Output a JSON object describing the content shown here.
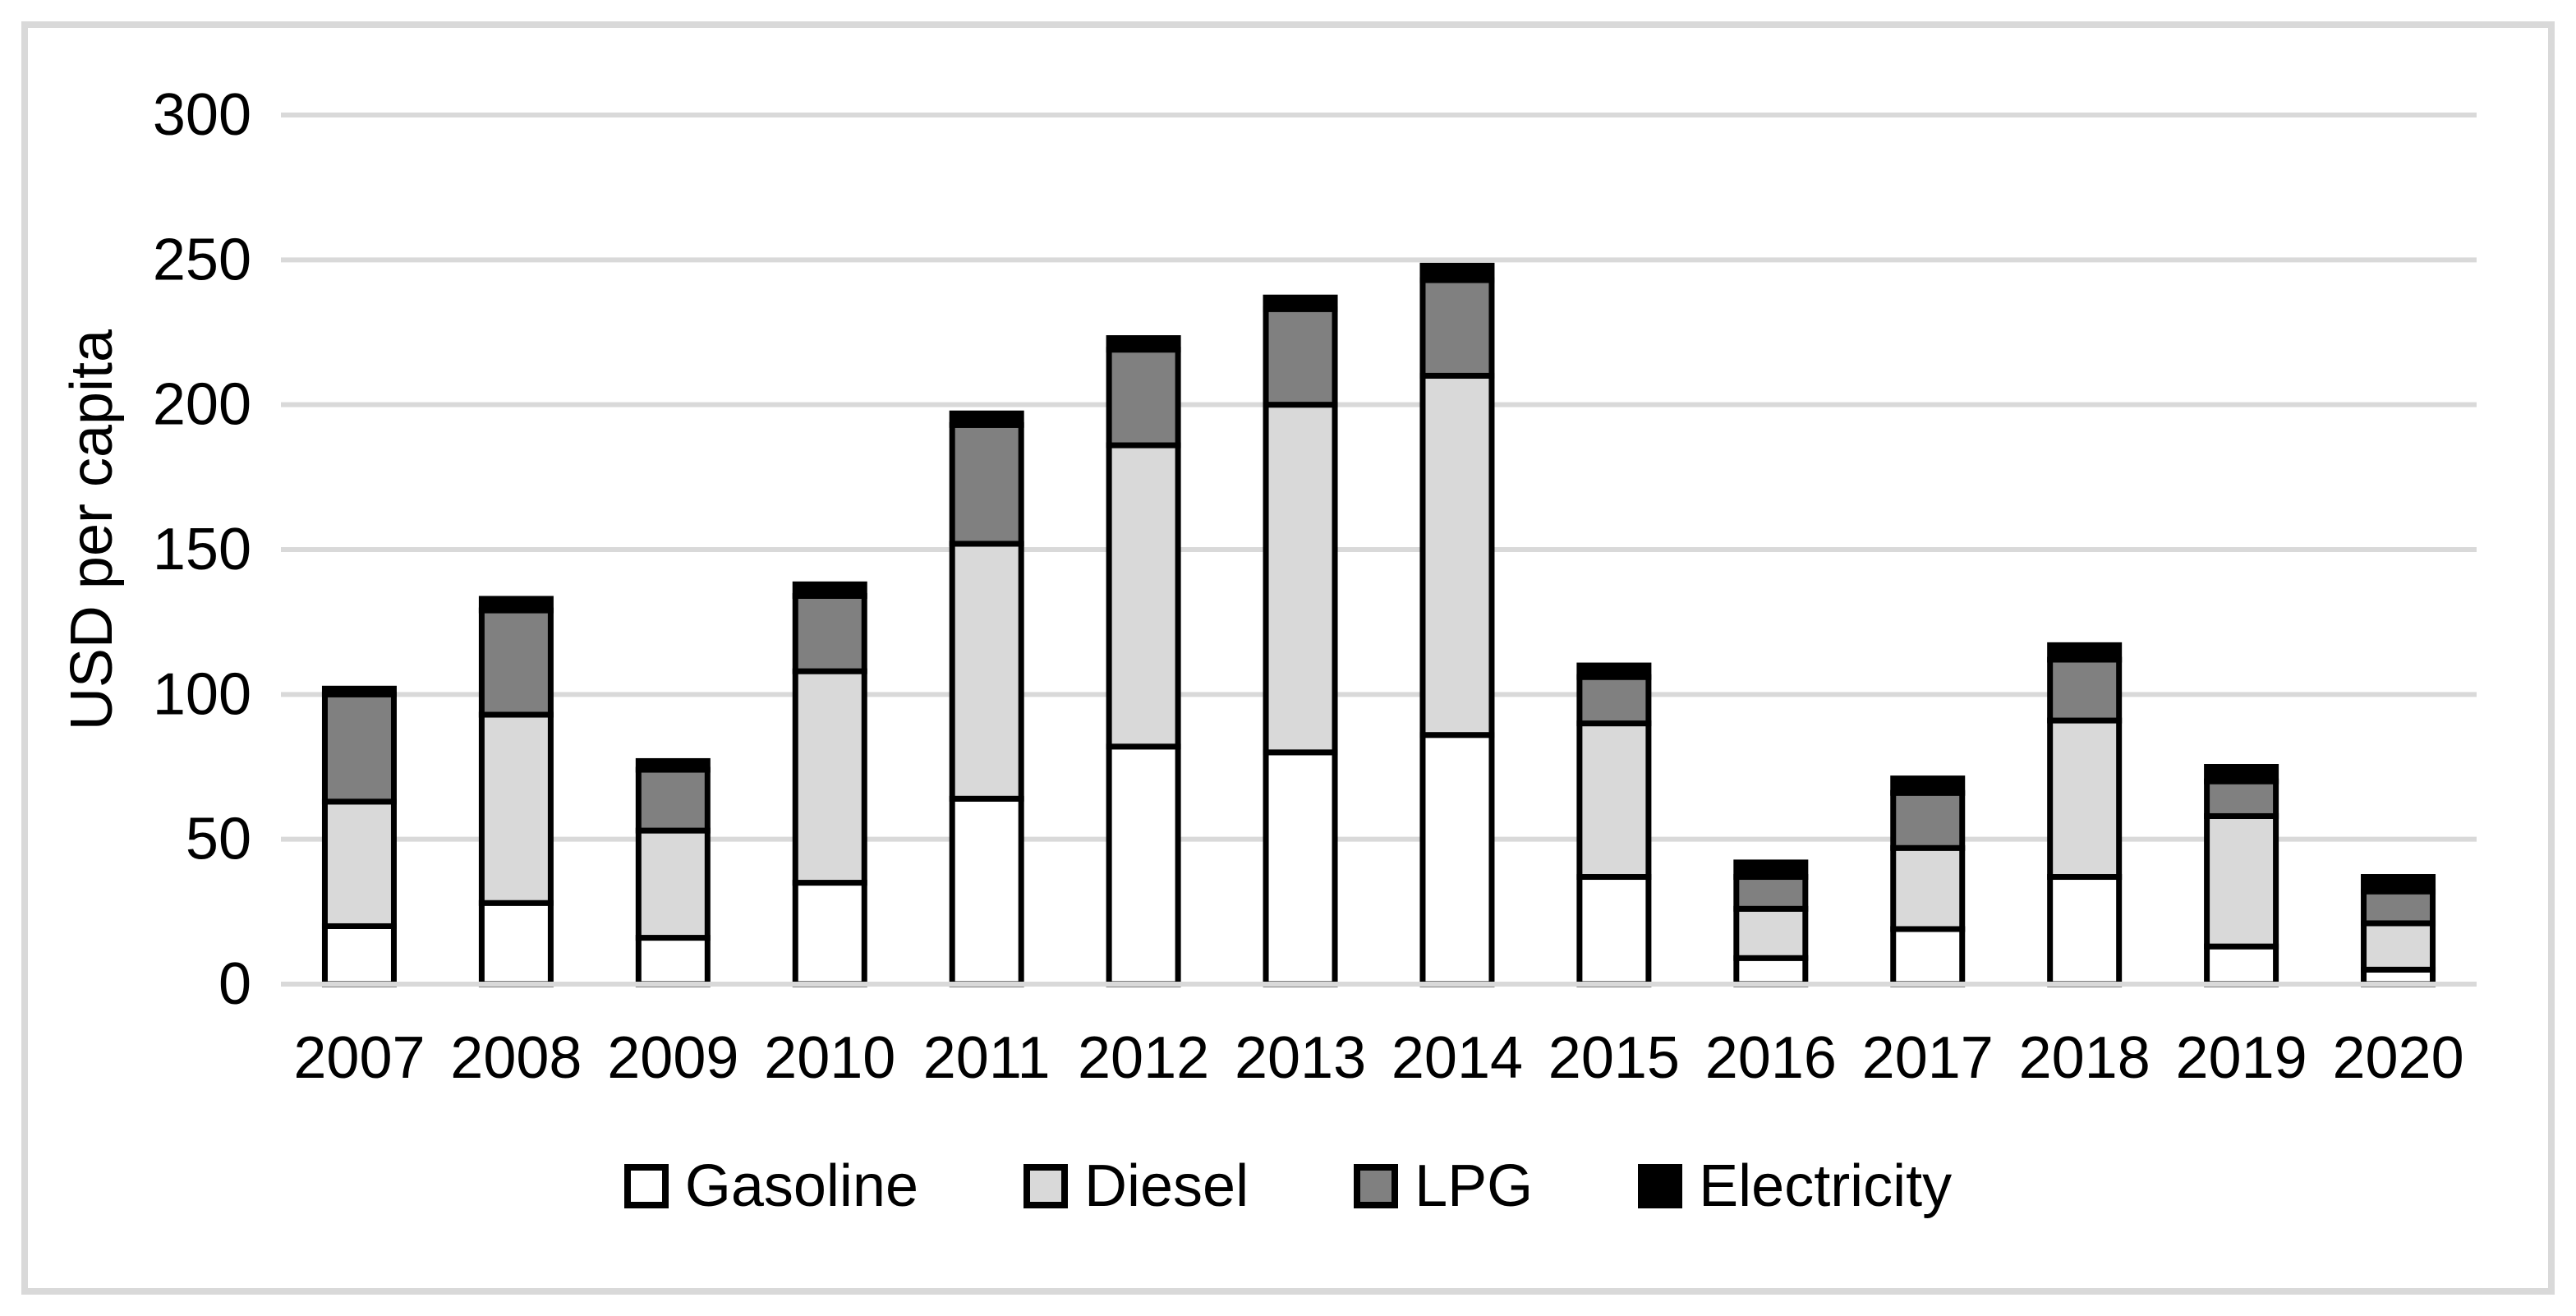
{
  "figure": {
    "background": "#ffffff",
    "frame_color": "#d9d9d9"
  },
  "chart_data": {
    "type": "bar",
    "stacked": true,
    "title": "",
    "ylabel": "USD per capita",
    "xlabel": "",
    "categories": [
      "2007",
      "2008",
      "2009",
      "2010",
      "2011",
      "2012",
      "2013",
      "2014",
      "2015",
      "2016",
      "2017",
      "2018",
      "2019",
      "2020"
    ],
    "series": [
      {
        "name": "Gasoline",
        "color": "#ffffff",
        "values": [
          20,
          28,
          16,
          35,
          64,
          82,
          80,
          86,
          37,
          9,
          19,
          37,
          13,
          5
        ]
      },
      {
        "name": "Diesel",
        "color": "#d9d9d9",
        "values": [
          43,
          65,
          37,
          73,
          88,
          104,
          120,
          124,
          53,
          17,
          28,
          54,
          45,
          16
        ]
      },
      {
        "name": "LPG",
        "color": "#808080",
        "values": [
          37,
          36,
          21,
          26,
          41,
          33,
          33,
          33,
          16,
          11,
          19,
          21,
          12,
          11
        ]
      },
      {
        "name": "Electricity",
        "color": "#000000",
        "values": [
          2,
          4,
          3,
          4,
          4,
          4,
          4,
          5,
          4,
          5,
          5,
          5,
          5,
          5
        ]
      }
    ],
    "totals": [
      102,
      133,
      77,
      138,
      197,
      223,
      237,
      248,
      110,
      42,
      71,
      117,
      75,
      37
    ],
    "ylim": [
      0,
      300
    ],
    "yticks": [
      0,
      50,
      100,
      150,
      200,
      250,
      300
    ],
    "grid": true,
    "gridline_color": "#d9d9d9",
    "bar_border_color": "#000000",
    "legend_position": "bottom"
  }
}
